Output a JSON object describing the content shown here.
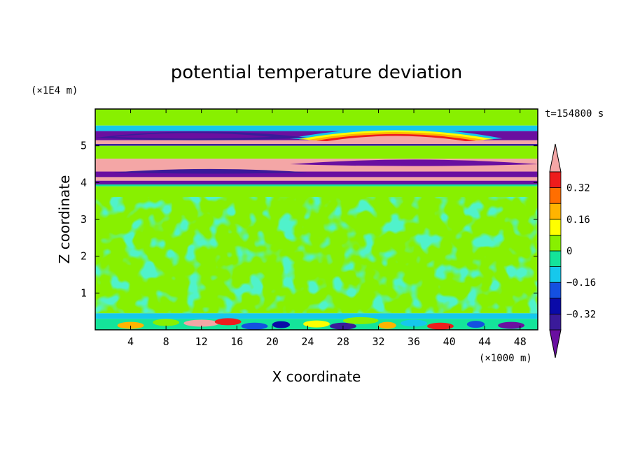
{
  "chart_data": {
    "type": "heatmap",
    "title": "potential temperature deviation",
    "xlabel": "X coordinate",
    "ylabel": "Z coordinate",
    "x_unit": "(×1000 m)",
    "y_unit": "(×1E4 m)",
    "time_label": "t=154800 s",
    "xlim": [
      0,
      50
    ],
    "ylim": [
      0,
      6
    ],
    "x_ticks": [
      4,
      8,
      12,
      16,
      20,
      24,
      28,
      32,
      36,
      40,
      44,
      48
    ],
    "y_ticks": [
      1,
      2,
      3,
      4,
      5
    ],
    "colorbar": {
      "levels": [
        -0.4,
        -0.32,
        -0.24,
        -0.16,
        -0.08,
        0,
        0.08,
        0.16,
        0.24,
        0.32,
        0.4
      ],
      "labeled": [
        "0.32",
        "0.16",
        "0",
        "−0.16",
        "−0.32"
      ],
      "colors": [
        "#6a0fa0",
        "#3a1a9a",
        "#0a0aa8",
        "#1450e0",
        "#16c8ec",
        "#14e49a",
        "#88f000",
        "#ffff00",
        "#ffb400",
        "#ff6e00",
        "#ee1c1c",
        "#f4a6a6"
      ]
    },
    "bands": [
      {
        "z": [
          5.55,
          6.0
        ],
        "color": "#88f000"
      },
      {
        "z": [
          5.4,
          5.55
        ],
        "color": "#16c8ec"
      },
      {
        "z": [
          5.15,
          5.4
        ],
        "color": "#6a0fa0"
      },
      {
        "z": [
          5.05,
          5.15
        ],
        "color": "#f4a6a6"
      },
      {
        "z": [
          5.0,
          5.05
        ],
        "color": "#3a1a9a"
      },
      {
        "z": [
          4.65,
          5.0
        ],
        "color": "#88f000"
      },
      {
        "z": [
          4.5,
          4.65
        ],
        "color": "#f4a6a6"
      },
      {
        "z": [
          4.3,
          4.5
        ],
        "color": "#f4a6a6"
      },
      {
        "z": [
          4.15,
          4.3
        ],
        "color": "#6a0fa0"
      },
      {
        "z": [
          4.05,
          4.15
        ],
        "color": "#f4a6a6"
      },
      {
        "z": [
          3.95,
          4.05
        ],
        "color": "#6a0fa0"
      },
      {
        "z": [
          3.9,
          3.95
        ],
        "color": "#14e49a"
      },
      {
        "z": [
          0.45,
          3.9
        ],
        "color": "#88f000"
      },
      {
        "z": [
          0.3,
          0.45
        ],
        "color": "#16c8ec"
      },
      {
        "z": [
          0.0,
          0.3
        ],
        "color": "#14e49a"
      }
    ]
  }
}
